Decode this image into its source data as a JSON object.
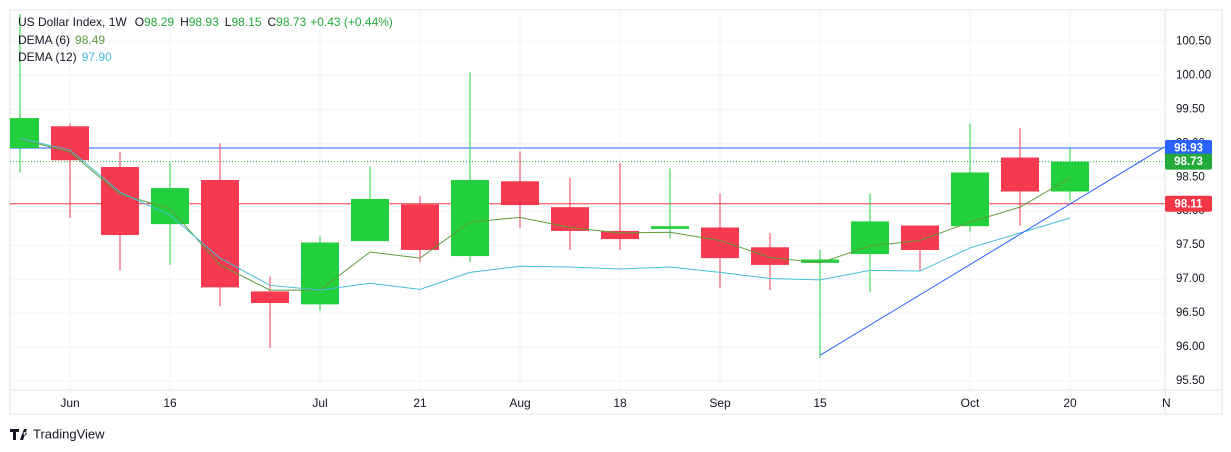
{
  "chart_data": {
    "type": "candlestick",
    "title": "US Dollar Index, 1W",
    "ohlc_labels": [
      "O",
      "H",
      "L",
      "C"
    ],
    "change": "+0.43 (+0.44%)",
    "categories": [
      null,
      "Jun",
      null,
      "16",
      null,
      null,
      "Jul",
      null,
      "21",
      null,
      "Aug",
      null,
      "18",
      null,
      "Sep",
      null,
      "15",
      null,
      null,
      "Oct",
      null,
      "20",
      null,
      "N"
    ],
    "open": [
      98.93,
      99.25,
      98.65,
      97.81,
      98.46,
      96.82,
      96.63,
      97.56,
      98.1,
      97.34,
      98.44,
      98.06,
      97.71,
      97.74,
      97.76,
      97.47,
      97.24,
      97.37,
      97.79,
      97.78,
      98.79,
      98.29,
      null,
      null
    ],
    "high": [
      100.9,
      99.29,
      98.87,
      98.72,
      99.0,
      97.04,
      97.63,
      98.66,
      98.22,
      100.04,
      98.88,
      98.49,
      98.71,
      98.63,
      98.26,
      97.68,
      97.43,
      98.26,
      97.79,
      99.29,
      99.22,
      98.93,
      null,
      null
    ],
    "low": [
      98.57,
      97.9,
      97.13,
      97.21,
      96.6,
      95.99,
      96.54,
      97.56,
      97.25,
      97.25,
      97.75,
      97.43,
      97.43,
      97.6,
      96.87,
      96.84,
      95.84,
      96.81,
      97.13,
      97.69,
      97.79,
      98.15,
      null,
      null
    ],
    "close": [
      99.37,
      98.75,
      97.65,
      98.34,
      96.88,
      96.65,
      97.54,
      98.18,
      97.43,
      98.46,
      98.09,
      97.71,
      97.59,
      97.78,
      97.31,
      97.21,
      97.29,
      97.85,
      97.43,
      98.57,
      98.29,
      98.73,
      null,
      null
    ],
    "up_color": "#22cf3c",
    "down_color": "#f5394f",
    "overlays": [
      {
        "name": "DEMA (6)",
        "color": "#5f9c3a",
        "legend_value": "98.49",
        "values": [
          99.06,
          98.87,
          98.25,
          98.04,
          97.21,
          96.84,
          96.84,
          97.4,
          97.31,
          97.84,
          97.91,
          97.76,
          97.68,
          97.69,
          97.57,
          97.32,
          97.24,
          97.49,
          97.57,
          97.84,
          98.06,
          98.49,
          null,
          null
        ]
      },
      {
        "name": "DEMA (12)",
        "color": "#45bfd8",
        "legend_value": "97.90",
        "values": [
          99.07,
          98.9,
          98.28,
          97.94,
          97.31,
          96.91,
          96.84,
          96.94,
          96.85,
          97.1,
          97.19,
          97.18,
          97.15,
          97.18,
          97.1,
          97.01,
          96.99,
          97.13,
          97.12,
          97.46,
          97.68,
          97.9,
          null,
          null
        ]
      }
    ],
    "price_lines": [
      {
        "value": 98.93,
        "color": "#2962ff",
        "dash": false
      },
      {
        "value": 98.73,
        "color": "#22ab3a",
        "dash": true
      },
      {
        "value": 98.11,
        "color": "#f23645",
        "dash": false
      }
    ],
    "trendline": {
      "x": [
        16,
        22.92
      ],
      "y": [
        95.88,
        98.96
      ],
      "color": "#2962ff"
    },
    "ylim": [
      95.37,
      100.96
    ],
    "yticks": [
      {
        "value": 95.5,
        "label": "95.50"
      },
      {
        "value": 96,
        "label": "96.00"
      },
      {
        "value": 96.5,
        "label": "96.50"
      },
      {
        "value": 97,
        "label": "97.00"
      },
      {
        "value": 97.5,
        "label": "97.50"
      },
      {
        "value": 98,
        "label": "98.00"
      },
      {
        "value": 98.5,
        "label": "98.50"
      },
      {
        "value": 99,
        "label": "99.00"
      },
      {
        "value": 99.5,
        "label": "99.50"
      },
      {
        "value": 100,
        "label": "100.00"
      },
      {
        "value": 100.5,
        "label": "100.50"
      }
    ],
    "grid": true,
    "brand": "TradingView"
  }
}
